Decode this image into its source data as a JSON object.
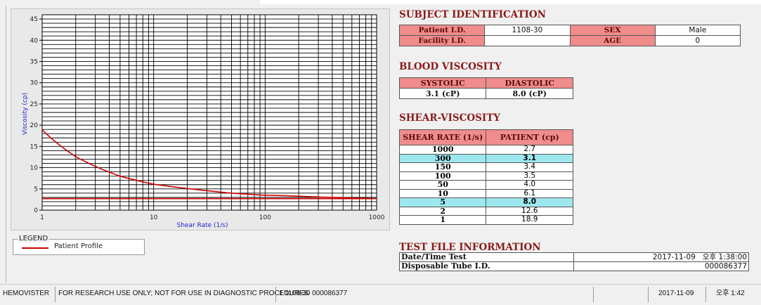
{
  "chart_data": {
    "type": "line",
    "xlabel": "Shear Rate (1/s)",
    "ylabel": "Viscosity (cp)",
    "xscale": "log",
    "xlim": [
      1,
      1000
    ],
    "ylim": [
      0,
      46
    ],
    "x_ticks": [
      {
        "label": "1",
        "value": 1
      },
      {
        "label": "10",
        "value": 10
      },
      {
        "label": "100",
        "value": 100
      },
      {
        "label": "1000",
        "value": 1000
      }
    ],
    "y_ticks": [
      {
        "label": "0",
        "value": 0
      },
      {
        "label": "5",
        "value": 5
      },
      {
        "label": "10",
        "value": 10
      },
      {
        "label": "15",
        "value": 15
      },
      {
        "label": "20",
        "value": 20
      },
      {
        "label": "25",
        "value": 25
      },
      {
        "label": "30",
        "value": 30
      },
      {
        "label": "35",
        "value": 35
      },
      {
        "label": "40",
        "value": 40
      },
      {
        "label": "45",
        "value": 45
      }
    ],
    "grid": true,
    "reference_line_y": 2.7,
    "series": [
      {
        "name": "Patient Profile",
        "color": "#cc0000",
        "x": [
          1,
          2,
          5,
          10,
          50,
          100,
          150,
          300,
          1000
        ],
        "y": [
          18.9,
          12.6,
          8.0,
          6.1,
          4.0,
          3.5,
          3.4,
          3.1,
          2.7
        ]
      }
    ]
  },
  "legend": {
    "title": "LEGEND",
    "label": "Patient Profile"
  },
  "subject": {
    "title": "SUBJECT IDENTIFICATION",
    "patient_id_label": "Patient I.D.",
    "patient_id": "1108-30",
    "sex_label": "SEX",
    "sex": "Male",
    "facility_id_label": "Facility I.D.",
    "facility_id": "",
    "age_label": "AGE",
    "age": "0"
  },
  "blood_viscosity": {
    "title": "BLOOD VISCOSITY",
    "systolic_label": "SYSTOLIC",
    "diastolic_label": "DIASTOLIC",
    "systolic": "3.1 (cP)",
    "diastolic": "8.0 (cP)"
  },
  "shear_viscosity": {
    "title": "SHEAR-VISCOSITY",
    "col_rate": "SHEAR RATE (1/s)",
    "col_patient": "PATIENT (cp)",
    "rows": [
      {
        "rate": "1000",
        "value": "2.7",
        "highlight": false
      },
      {
        "rate": "300",
        "value": "3.1",
        "highlight": true
      },
      {
        "rate": "150",
        "value": "3.4",
        "highlight": false
      },
      {
        "rate": "100",
        "value": "3.5",
        "highlight": false
      },
      {
        "rate": "50",
        "value": "4.0",
        "highlight": false
      },
      {
        "rate": "10",
        "value": "6.1",
        "highlight": false
      },
      {
        "rate": "5",
        "value": "8.0",
        "highlight": true
      },
      {
        "rate": "2",
        "value": "12.6",
        "highlight": false
      },
      {
        "rate": "1",
        "value": "18.9",
        "highlight": false
      }
    ]
  },
  "test_file": {
    "title": "TEST FILE INFORMATION",
    "datetime_label": "Date/Time Test",
    "datetime": "2017-11-09   오후 1:38:00",
    "tube_label": "Disposable Tube I.D.",
    "tube_id": "000086377"
  },
  "statusbar": {
    "app": "HEMOVISTER",
    "notice": "FOR RESEARCH USE ONLY; NOT FOR USE IN DIAGNOSTIC PROCEDURES",
    "record": "1  1108-30  000086377",
    "empty": "",
    "date": "2017-11-09",
    "time": "오후 1:42"
  }
}
